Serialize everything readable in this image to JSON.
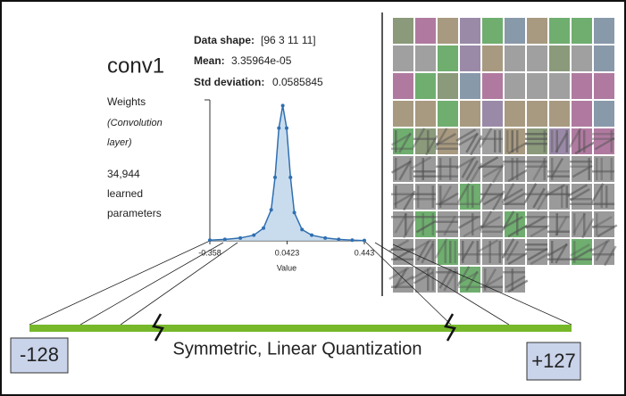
{
  "layer": {
    "name": "conv1",
    "kind": "Weights",
    "kind_detail": "(Convolution",
    "kind_detail_2": "layer)",
    "count": "34,944",
    "count_label_1": "learned",
    "count_label_2": "parameters"
  },
  "stats": {
    "shape_label": "Data shape:",
    "shape": "[96 3 11 11]",
    "mean_label": "Mean:",
    "mean": "3.35964e-05",
    "std_label": "Std deviation:",
    "std": "0.0585845"
  },
  "chart_data": {
    "type": "line",
    "color": "#2f6fb0",
    "x": [
      -0.358,
      -0.28,
      -0.2,
      -0.13,
      -0.08,
      -0.04,
      -0.02,
      0,
      0.02,
      0.04,
      0.06,
      0.08,
      0.12,
      0.17,
      0.24,
      0.31,
      0.38,
      0.443
    ],
    "values": [
      0.005,
      0.01,
      0.02,
      0.04,
      0.09,
      0.22,
      0.45,
      0.8,
      0.96,
      0.8,
      0.45,
      0.2,
      0.08,
      0.04,
      0.02,
      0.01,
      0.005,
      0.002
    ],
    "xlim": [
      -0.358,
      0.443
    ],
    "xticks": [
      -0.358,
      0.0423,
      0.443
    ],
    "ylim": [
      0,
      1
    ],
    "xlabel": "Value"
  },
  "quantization": {
    "label": "Symmetric, Linear Quantization",
    "min": "-128",
    "max": "+127"
  }
}
